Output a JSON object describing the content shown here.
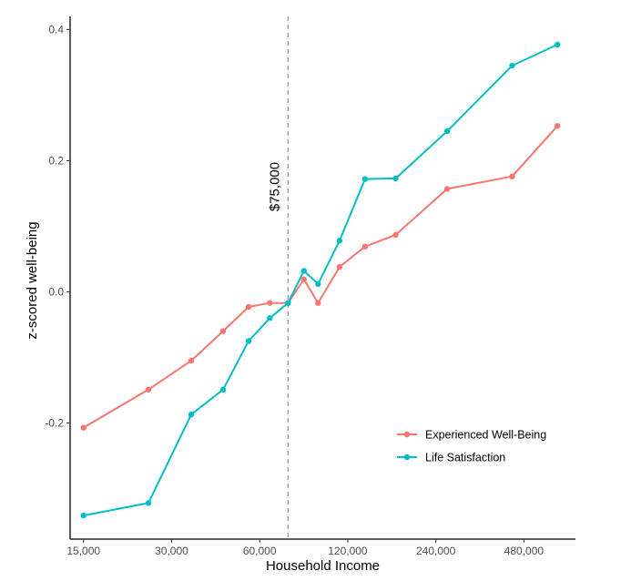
{
  "chart_data": {
    "type": "line",
    "title": "",
    "xlabel": "Household Income",
    "ylabel": "z-scored well-being",
    "x_scale": "log2",
    "x_ticks": [
      15000,
      30000,
      60000,
      120000,
      240000,
      480000
    ],
    "x_tick_labels": [
      "15,000",
      "30,000",
      "60,000",
      "120,000",
      "240,000",
      "480,000"
    ],
    "y_ticks": [
      -0.2,
      0.0,
      0.2,
      0.4
    ],
    "y_tick_labels": [
      "-0.2",
      "0.0",
      "0.2",
      "0.4"
    ],
    "xlim": [
      13500,
      720000
    ],
    "ylim": [
      -0.377,
      0.42
    ],
    "grid": false,
    "legend_position": "bottom-right",
    "reference_line": {
      "x": 75000,
      "label": "$75,000",
      "style": "dashed",
      "color": "#999999"
    },
    "series": [
      {
        "name": "Experienced Well-Being",
        "color": "#F8766D",
        "x": [
          15000,
          25000,
          35000,
          45000,
          55000,
          65000,
          75000,
          85000,
          95000,
          112500,
          137500,
          175000,
          262500,
          437500,
          625000
        ],
        "y": [
          -0.207,
          -0.149,
          -0.105,
          -0.06,
          -0.023,
          -0.017,
          -0.017,
          0.019,
          -0.017,
          0.038,
          0.069,
          0.087,
          0.157,
          0.176,
          0.253
        ]
      },
      {
        "name": "Life Satisfaction",
        "color": "#00BFC4",
        "x": [
          15000,
          25000,
          35000,
          45000,
          55000,
          65000,
          75000,
          85000,
          95000,
          112500,
          137500,
          175000,
          262500,
          437500,
          625000
        ],
        "y": [
          -0.341,
          -0.322,
          -0.187,
          -0.149,
          -0.075,
          -0.04,
          -0.017,
          0.032,
          0.012,
          0.078,
          0.172,
          0.173,
          0.245,
          0.345,
          0.377
        ]
      }
    ]
  }
}
